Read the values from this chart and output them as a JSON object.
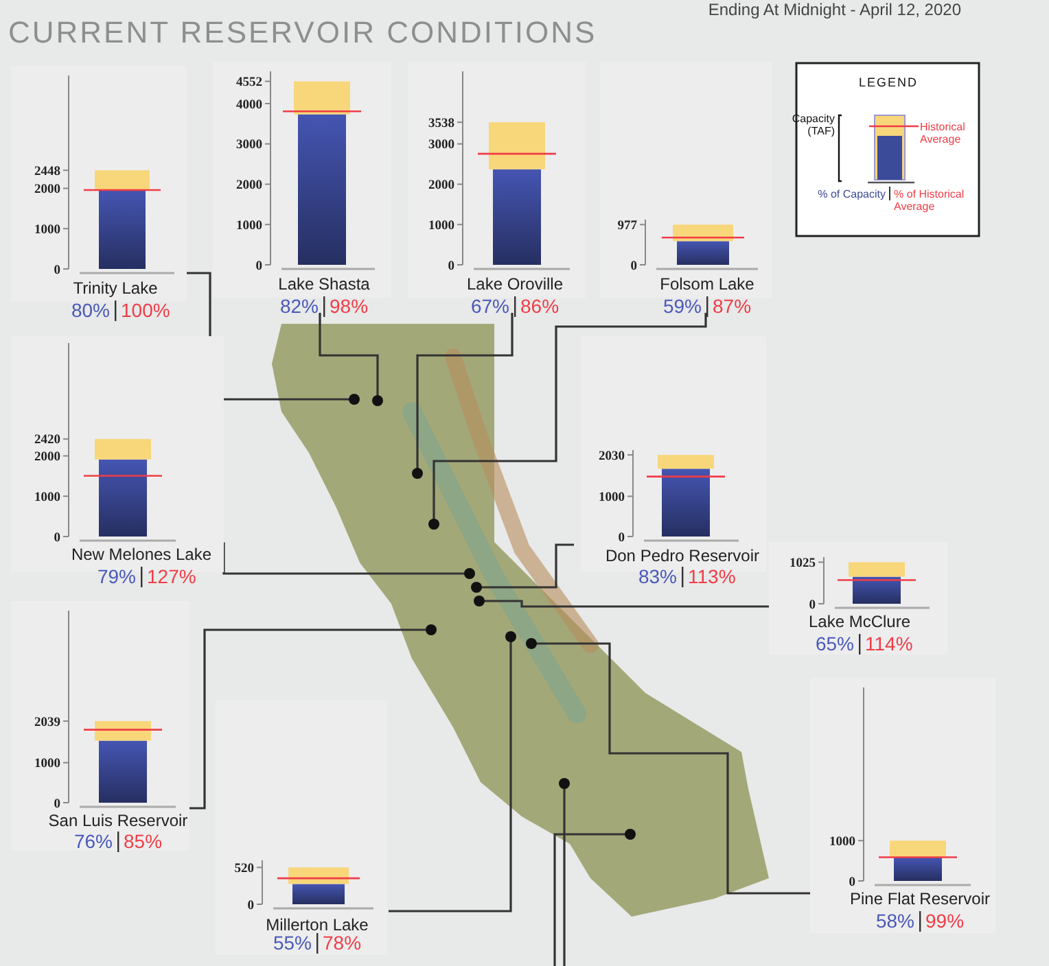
{
  "chart_data": [
    {
      "type": "other",
      "title": "CURRENT RESERVOIR CONDITIONS",
      "subtitle": "Ending At Midnight - April 12, 2020"
    },
    {
      "type": "bar",
      "title": "Trinity Lake",
      "categories": [
        null
      ],
      "stacked": true,
      "series": [
        {
          "color": "#3c4a9a",
          "values": [
            1958
          ]
        },
        {
          "color": "#f8d67a",
          "values": [
            490
          ]
        }
      ],
      "ylim": [
        0,
        4800
      ],
      "yticks": [
        0,
        1000,
        2000,
        2448
      ],
      "ref_lines": [
        {
          "axis": "y",
          "value": 1958,
          "color": "#f03c46"
        }
      ],
      "annotations": [
        "80%",
        "100%"
      ]
    },
    {
      "type": "bar",
      "title": "Lake Shasta",
      "categories": [
        null
      ],
      "stacked": true,
      "series": [
        {
          "color": "#3c4a9a",
          "values": [
            3733
          ]
        },
        {
          "color": "#f8d67a",
          "values": [
            819
          ]
        }
      ],
      "ylim": [
        0,
        4800
      ],
      "yticks": [
        0,
        1000,
        2000,
        3000,
        4000,
        4552
      ],
      "ref_lines": [
        {
          "axis": "y",
          "value": 3809,
          "color": "#f03c46"
        }
      ],
      "annotations": [
        "82%",
        "98%"
      ]
    },
    {
      "type": "bar",
      "title": "Lake Oroville",
      "categories": [
        null
      ],
      "stacked": true,
      "series": [
        {
          "color": "#3c4a9a",
          "values": [
            2370
          ]
        },
        {
          "color": "#f8d67a",
          "values": [
            1168
          ]
        }
      ],
      "ylim": [
        0,
        4800
      ],
      "yticks": [
        0,
        1000,
        2000,
        3000,
        3538
      ],
      "ref_lines": [
        {
          "axis": "y",
          "value": 2756,
          "color": "#f03c46"
        }
      ],
      "annotations": [
        "67%",
        "86%"
      ]
    },
    {
      "type": "bar",
      "title": "Folsom Lake",
      "categories": [
        null
      ],
      "stacked": true,
      "series": [
        {
          "color": "#3c4a9a",
          "values": [
            576
          ]
        },
        {
          "color": "#f8d67a",
          "values": [
            401
          ]
        }
      ],
      "ylim": [
        0,
        1100
      ],
      "yticks": [
        0,
        977
      ],
      "ref_lines": [
        {
          "axis": "y",
          "value": 662,
          "color": "#f03c46"
        }
      ],
      "annotations": [
        "59%",
        "87%"
      ]
    },
    {
      "type": "bar",
      "title": "New Melones Lake",
      "categories": [
        null
      ],
      "stacked": true,
      "series": [
        {
          "color": "#3c4a9a",
          "values": [
            1912
          ]
        },
        {
          "color": "#f8d67a",
          "values": [
            508
          ]
        }
      ],
      "ylim": [
        0,
        4800
      ],
      "yticks": [
        0,
        1000,
        2000,
        2420
      ],
      "ref_lines": [
        {
          "axis": "y",
          "value": 1506,
          "color": "#f03c46"
        }
      ],
      "annotations": [
        "79%",
        "127%"
      ]
    },
    {
      "type": "bar",
      "title": "Don Pedro Reservoir",
      "categories": [
        null
      ],
      "stacked": true,
      "series": [
        {
          "color": "#3c4a9a",
          "values": [
            1685
          ]
        },
        {
          "color": "#f8d67a",
          "values": [
            345
          ]
        }
      ],
      "ylim": [
        0,
        2150
      ],
      "yticks": [
        0,
        1000,
        2030
      ],
      "ref_lines": [
        {
          "axis": "y",
          "value": 1491,
          "color": "#f03c46"
        }
      ],
      "annotations": [
        "83%",
        "113%"
      ]
    },
    {
      "type": "bar",
      "title": "Lake McClure",
      "categories": [
        null
      ],
      "stacked": true,
      "series": [
        {
          "color": "#3c4a9a",
          "values": [
            666
          ]
        },
        {
          "color": "#f8d67a",
          "values": [
            359
          ]
        }
      ],
      "ylim": [
        0,
        1150
      ],
      "yticks": [
        0,
        1025
      ],
      "ref_lines": [
        {
          "axis": "y",
          "value": 584,
          "color": "#f03c46"
        }
      ],
      "annotations": [
        "65%",
        "114%"
      ]
    },
    {
      "type": "bar",
      "title": "San Luis Reservoir",
      "categories": [
        null
      ],
      "stacked": true,
      "series": [
        {
          "color": "#3c4a9a",
          "values": [
            1550
          ]
        },
        {
          "color": "#f8d67a",
          "values": [
            489
          ]
        }
      ],
      "ylim": [
        0,
        4800
      ],
      "yticks": [
        0,
        1000,
        2039
      ],
      "ref_lines": [
        {
          "axis": "y",
          "value": 1824,
          "color": "#f03c46"
        }
      ],
      "annotations": [
        "76%",
        "85%"
      ]
    },
    {
      "type": "bar",
      "title": "Millerton Lake",
      "categories": [
        null
      ],
      "stacked": true,
      "series": [
        {
          "color": "#3c4a9a",
          "values": [
            286
          ]
        },
        {
          "color": "#f8d67a",
          "values": [
            234
          ]
        }
      ],
      "ylim": [
        0,
        620
      ],
      "yticks": [
        0,
        520
      ],
      "ref_lines": [
        {
          "axis": "y",
          "value": 367,
          "color": "#f03c46"
        }
      ],
      "annotations": [
        "55%",
        "78%"
      ]
    },
    {
      "type": "bar",
      "title": "Pine Flat Reservoir",
      "categories": [
        null
      ],
      "stacked": true,
      "series": [
        {
          "color": "#3c4a9a",
          "values": [
            580
          ]
        },
        {
          "color": "#f8d67a",
          "values": [
            420
          ]
        }
      ],
      "ylim": [
        0,
        4800
      ],
      "yticks": [
        0,
        1000
      ],
      "ref_lines": [
        {
          "axis": "y",
          "value": 586,
          "color": "#f03c46"
        }
      ],
      "annotations": [
        "58%",
        "99%"
      ]
    },
    {
      "type": "other",
      "title": "LEGEND",
      "annotations": [
        "Capacity (TAF)",
        "Historical Average",
        "% of Capacity",
        "% of Historical Average"
      ]
    }
  ]
}
